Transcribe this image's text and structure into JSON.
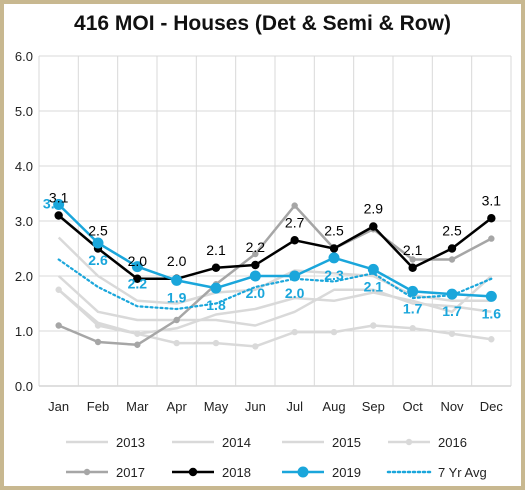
{
  "chart_data": {
    "type": "line",
    "title": "416 MOI - Houses (Det & Semi & Row)",
    "xlabel": "",
    "ylabel": "",
    "categories": [
      "Jan",
      "Feb",
      "Mar",
      "Apr",
      "May",
      "Jun",
      "Jul",
      "Aug",
      "Sep",
      "Oct",
      "Nov",
      "Dec"
    ],
    "ylim": [
      0,
      6
    ],
    "yticks": [
      "0.0",
      "1.0",
      "2.0",
      "3.0",
      "4.0",
      "5.0",
      "6.0"
    ],
    "grid": true,
    "legend": "bottom",
    "series": [
      {
        "name": "2013",
        "color": "#d9d9d9",
        "marker": false,
        "values": [
          2.0,
          1.35,
          1.2,
          1.2,
          1.2,
          1.1,
          1.35,
          1.75,
          1.75,
          1.5,
          1.45,
          1.35
        ],
        "labels": false
      },
      {
        "name": "2014",
        "color": "#d9d9d9",
        "marker": false,
        "values": [
          2.7,
          2.0,
          1.55,
          1.5,
          1.7,
          1.75,
          2.1,
          2.05,
          2.0,
          1.65,
          1.55,
          1.55
        ],
        "labels": false
      },
      {
        "name": "2015",
        "color": "#d9d9d9",
        "marker": false,
        "values": [
          1.75,
          1.15,
          0.95,
          1.05,
          1.3,
          1.4,
          1.6,
          1.55,
          1.7,
          1.55,
          1.35,
          2.0
        ],
        "labels": false
      },
      {
        "name": "2016",
        "color": "#d9d9d9",
        "marker": true,
        "values": [
          1.75,
          1.1,
          0.95,
          0.78,
          0.78,
          0.72,
          0.98,
          0.98,
          1.1,
          1.05,
          0.95,
          0.85
        ],
        "labels": false
      },
      {
        "name": "2017",
        "color": "#a6a6a6",
        "marker": true,
        "values": [
          1.1,
          0.8,
          0.75,
          1.2,
          1.85,
          2.4,
          3.28,
          2.5,
          2.85,
          2.3,
          2.3,
          2.68
        ],
        "labels": false
      },
      {
        "name": "2018",
        "color": "#000000",
        "marker": true,
        "values": [
          3.1,
          2.5,
          1.95,
          1.95,
          2.15,
          2.2,
          2.65,
          2.5,
          2.9,
          2.15,
          2.5,
          3.05
        ],
        "labels": [
          "3.1",
          "2.5",
          "2.0",
          "2.0",
          "2.1",
          "2.2",
          "2.7",
          "2.5",
          "2.9",
          "2.1",
          "2.5",
          "3.1"
        ]
      },
      {
        "name": "2019",
        "color": "#1aa6db",
        "marker": true,
        "values": [
          3.3,
          2.6,
          2.17,
          1.92,
          1.78,
          2.0,
          2.0,
          2.33,
          2.12,
          1.72,
          1.67,
          1.63
        ],
        "labels": [
          "3.3",
          "2.6",
          "2.2",
          "1.9",
          "1.8",
          "2.0",
          "2.0",
          "2.3",
          "2.1",
          "1.7",
          "1.7",
          "1.6"
        ]
      },
      {
        "name": "7 Yr Avg",
        "color": "#1aa6db",
        "marker": false,
        "dotted": true,
        "values": [
          2.3,
          1.8,
          1.45,
          1.4,
          1.5,
          1.8,
          1.95,
          1.9,
          2.05,
          1.6,
          1.65,
          1.95
        ],
        "labels": false
      }
    ]
  }
}
